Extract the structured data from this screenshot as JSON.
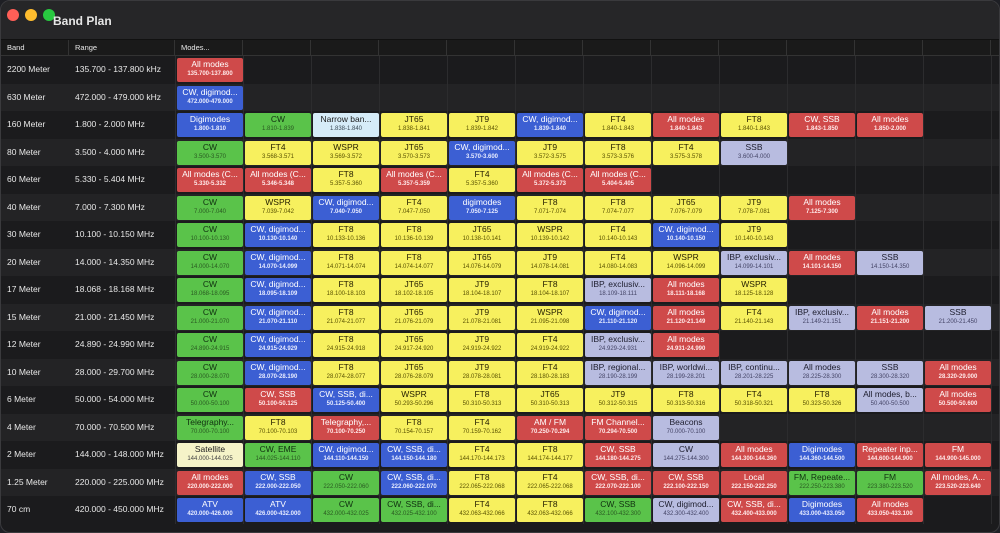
{
  "window": {
    "title": "Band Plan"
  },
  "columns": {
    "band": "Band",
    "range": "Range",
    "modes": "Modes..."
  },
  "colors": {
    "green": "#5ac34a",
    "yellow": "#f7f05e",
    "blue": "#3c5fd3",
    "red": "#cf4a4a",
    "lavender": "#b8bce0",
    "pale": "#f5f3c8",
    "lightblue": "#d6ecf8"
  },
  "rows": [
    {
      "band": "2200 Meter",
      "range": "135.700 - 137.800 kHz",
      "modes": [
        {
          "name": "All modes",
          "freq": "135.700-137.800",
          "color": "red"
        }
      ]
    },
    {
      "band": "630 Meter",
      "range": "472.000 - 479.000 kHz",
      "modes": [
        {
          "name": "CW, digimod...",
          "freq": "472.000-479.000",
          "color": "blue"
        }
      ]
    },
    {
      "band": "160 Meter",
      "range": "1.800 - 2.000 MHz",
      "modes": [
        {
          "name": "Digimodes",
          "freq": "1.800-1.810",
          "color": "blue"
        },
        {
          "name": "CW",
          "freq": "1.810-1.839",
          "color": "green"
        },
        {
          "name": "Narrow ban...",
          "freq": "1.838-1.840",
          "color": "lightblue"
        },
        {
          "name": "JT65",
          "freq": "1.838-1.841",
          "color": "yellow"
        },
        {
          "name": "JT9",
          "freq": "1.839-1.842",
          "color": "yellow"
        },
        {
          "name": "CW, digimod...",
          "freq": "1.839-1.840",
          "color": "blue"
        },
        {
          "name": "FT4",
          "freq": "1.840-1.843",
          "color": "yellow"
        },
        {
          "name": "All modes",
          "freq": "1.840-1.843",
          "color": "red"
        },
        {
          "name": "FT8",
          "freq": "1.840-1.843",
          "color": "yellow"
        },
        {
          "name": "CW, SSB",
          "freq": "1.843-1.850",
          "color": "red"
        },
        {
          "name": "All modes",
          "freq": "1.850-2.000",
          "color": "red"
        }
      ]
    },
    {
      "band": "80 Meter",
      "range": "3.500 - 4.000 MHz",
      "modes": [
        {
          "name": "CW",
          "freq": "3.500-3.570",
          "color": "green"
        },
        {
          "name": "FT4",
          "freq": "3.568-3.571",
          "color": "yellow"
        },
        {
          "name": "WSPR",
          "freq": "3.569-3.572",
          "color": "yellow"
        },
        {
          "name": "JT65",
          "freq": "3.570-3.573",
          "color": "yellow"
        },
        {
          "name": "CW, digimod...",
          "freq": "3.570-3.600",
          "color": "blue"
        },
        {
          "name": "JT9",
          "freq": "3.572-3.575",
          "color": "yellow"
        },
        {
          "name": "FT8",
          "freq": "3.573-3.576",
          "color": "yellow"
        },
        {
          "name": "FT4",
          "freq": "3.575-3.578",
          "color": "yellow"
        },
        {
          "name": "SSB",
          "freq": "3.600-4.000",
          "color": "lavender"
        }
      ]
    },
    {
      "band": "60 Meter",
      "range": "5.330 - 5.404 MHz",
      "modes": [
        {
          "name": "All modes (C...",
          "freq": "5.330-5.332",
          "color": "red"
        },
        {
          "name": "All modes (C...",
          "freq": "5.346-5.348",
          "color": "red"
        },
        {
          "name": "FT8",
          "freq": "5.357-5.360",
          "color": "yellow"
        },
        {
          "name": "All modes (C...",
          "freq": "5.357-5.359",
          "color": "red"
        },
        {
          "name": "FT4",
          "freq": "5.357-5.360",
          "color": "yellow"
        },
        {
          "name": "All modes (C...",
          "freq": "5.372-5.373",
          "color": "red"
        },
        {
          "name": "All modes (C...",
          "freq": "5.404-5.405",
          "color": "red"
        }
      ]
    },
    {
      "band": "40 Meter",
      "range": "7.000 - 7.300 MHz",
      "modes": [
        {
          "name": "CW",
          "freq": "7.000-7.040",
          "color": "green"
        },
        {
          "name": "WSPR",
          "freq": "7.039-7.042",
          "color": "yellow"
        },
        {
          "name": "CW, digimod...",
          "freq": "7.040-7.050",
          "color": "blue"
        },
        {
          "name": "FT4",
          "freq": "7.047-7.050",
          "color": "yellow"
        },
        {
          "name": "digimodes",
          "freq": "7.050-7.125",
          "color": "blue"
        },
        {
          "name": "FT8",
          "freq": "7.071-7.074",
          "color": "yellow"
        },
        {
          "name": "FT8",
          "freq": "7.074-7.077",
          "color": "yellow"
        },
        {
          "name": "JT65",
          "freq": "7.076-7.079",
          "color": "yellow"
        },
        {
          "name": "JT9",
          "freq": "7.078-7.081",
          "color": "yellow"
        },
        {
          "name": "All modes",
          "freq": "7.125-7.300",
          "color": "red"
        }
      ]
    },
    {
      "band": "30 Meter",
      "range": "10.100 - 10.150 MHz",
      "modes": [
        {
          "name": "CW",
          "freq": "10.100-10.130",
          "color": "green"
        },
        {
          "name": "CW, digimod...",
          "freq": "10.130-10.140",
          "color": "blue"
        },
        {
          "name": "FT8",
          "freq": "10.133-10.136",
          "color": "yellow"
        },
        {
          "name": "FT8",
          "freq": "10.136-10.139",
          "color": "yellow"
        },
        {
          "name": "JT65",
          "freq": "10.138-10.141",
          "color": "yellow"
        },
        {
          "name": "WSPR",
          "freq": "10.139-10.142",
          "color": "yellow"
        },
        {
          "name": "FT4",
          "freq": "10.140-10.143",
          "color": "yellow"
        },
        {
          "name": "CW, digimod...",
          "freq": "10.140-10.150",
          "color": "blue"
        },
        {
          "name": "JT9",
          "freq": "10.140-10.143",
          "color": "yellow"
        }
      ]
    },
    {
      "band": "20 Meter",
      "range": "14.000 - 14.350 MHz",
      "modes": [
        {
          "name": "CW",
          "freq": "14.000-14.070",
          "color": "green"
        },
        {
          "name": "CW, digimod...",
          "freq": "14.070-14.099",
          "color": "blue"
        },
        {
          "name": "FT8",
          "freq": "14.071-14.074",
          "color": "yellow"
        },
        {
          "name": "FT8",
          "freq": "14.074-14.077",
          "color": "yellow"
        },
        {
          "name": "JT65",
          "freq": "14.076-14.079",
          "color": "yellow"
        },
        {
          "name": "JT9",
          "freq": "14.078-14.081",
          "color": "yellow"
        },
        {
          "name": "FT4",
          "freq": "14.080-14.083",
          "color": "yellow"
        },
        {
          "name": "WSPR",
          "freq": "14.096-14.099",
          "color": "yellow"
        },
        {
          "name": "IBP, exclusiv...",
          "freq": "14.099-14.101",
          "color": "lavender"
        },
        {
          "name": "All modes",
          "freq": "14.101-14.150",
          "color": "red"
        },
        {
          "name": "SSB",
          "freq": "14.150-14.350",
          "color": "lavender"
        }
      ]
    },
    {
      "band": "17 Meter",
      "range": "18.068 - 18.168 MHz",
      "modes": [
        {
          "name": "CW",
          "freq": "18.068-18.095",
          "color": "green"
        },
        {
          "name": "CW, digimod...",
          "freq": "18.095-18.109",
          "color": "blue"
        },
        {
          "name": "FT8",
          "freq": "18.100-18.103",
          "color": "yellow"
        },
        {
          "name": "JT65",
          "freq": "18.102-18.105",
          "color": "yellow"
        },
        {
          "name": "JT9",
          "freq": "18.104-18.107",
          "color": "yellow"
        },
        {
          "name": "FT8",
          "freq": "18.104-18.107",
          "color": "yellow"
        },
        {
          "name": "IBP, exclusiv...",
          "freq": "18.109-18.111",
          "color": "lavender"
        },
        {
          "name": "All modes",
          "freq": "18.111-18.168",
          "color": "red"
        },
        {
          "name": "WSPR",
          "freq": "18.125-18.128",
          "color": "yellow"
        }
      ]
    },
    {
      "band": "15 Meter",
      "range": "21.000 - 21.450 MHz",
      "modes": [
        {
          "name": "CW",
          "freq": "21.000-21.070",
          "color": "green"
        },
        {
          "name": "CW, digimod...",
          "freq": "21.070-21.110",
          "color": "blue"
        },
        {
          "name": "FT8",
          "freq": "21.074-21.077",
          "color": "yellow"
        },
        {
          "name": "JT65",
          "freq": "21.076-21.079",
          "color": "yellow"
        },
        {
          "name": "JT9",
          "freq": "21.078-21.081",
          "color": "yellow"
        },
        {
          "name": "WSPR",
          "freq": "21.095-21.098",
          "color": "yellow"
        },
        {
          "name": "CW, digimod...",
          "freq": "21.110-21.120",
          "color": "blue"
        },
        {
          "name": "All modes",
          "freq": "21.120-21.149",
          "color": "red"
        },
        {
          "name": "FT4",
          "freq": "21.140-21.143",
          "color": "yellow"
        },
        {
          "name": "IBP, exclusiv...",
          "freq": "21.149-21.151",
          "color": "lavender"
        },
        {
          "name": "All modes",
          "freq": "21.151-21.200",
          "color": "red"
        },
        {
          "name": "SSB",
          "freq": "21.200-21.450",
          "color": "lavender"
        }
      ]
    },
    {
      "band": "12 Meter",
      "range": "24.890 - 24.990 MHz",
      "modes": [
        {
          "name": "CW",
          "freq": "24.890-24.915",
          "color": "green"
        },
        {
          "name": "CW, digimod...",
          "freq": "24.915-24.929",
          "color": "blue"
        },
        {
          "name": "FT8",
          "freq": "24.915-24.918",
          "color": "yellow"
        },
        {
          "name": "JT65",
          "freq": "24.917-24.920",
          "color": "yellow"
        },
        {
          "name": "JT9",
          "freq": "24.919-24.922",
          "color": "yellow"
        },
        {
          "name": "FT4",
          "freq": "24.919-24.922",
          "color": "yellow"
        },
        {
          "name": "IBP, exclusiv...",
          "freq": "24.929-24.931",
          "color": "lavender"
        },
        {
          "name": "All modes",
          "freq": "24.931-24.990",
          "color": "red"
        }
      ]
    },
    {
      "band": "10 Meter",
      "range": "28.000 - 29.700 MHz",
      "modes": [
        {
          "name": "CW",
          "freq": "28.000-28.070",
          "color": "green"
        },
        {
          "name": "CW, digimod...",
          "freq": "28.070-28.190",
          "color": "blue"
        },
        {
          "name": "FT8",
          "freq": "28.074-28.077",
          "color": "yellow"
        },
        {
          "name": "JT65",
          "freq": "28.076-28.079",
          "color": "yellow"
        },
        {
          "name": "JT9",
          "freq": "28.078-28.081",
          "color": "yellow"
        },
        {
          "name": "FT4",
          "freq": "28.180-28.183",
          "color": "yellow"
        },
        {
          "name": "IBP, regional...",
          "freq": "28.190-28.199",
          "color": "lavender"
        },
        {
          "name": "IBP, worldwi...",
          "freq": "28.199-28.201",
          "color": "lavender"
        },
        {
          "name": "IBP, continu...",
          "freq": "28.201-28.225",
          "color": "lavender"
        },
        {
          "name": "All modes",
          "freq": "28.225-28.300",
          "color": "lavender"
        },
        {
          "name": "SSB",
          "freq": "28.300-28.320",
          "color": "lavender"
        },
        {
          "name": "All modes",
          "freq": "28.320-29.000",
          "color": "red"
        }
      ]
    },
    {
      "band": "6 Meter",
      "range": "50.000 - 54.000 MHz",
      "modes": [
        {
          "name": "CW",
          "freq": "50.000-50.100",
          "color": "green"
        },
        {
          "name": "CW, SSB",
          "freq": "50.100-50.125",
          "color": "red"
        },
        {
          "name": "CW, SSB, di...",
          "freq": "50.125-50.400",
          "color": "blue"
        },
        {
          "name": "WSPR",
          "freq": "50.293-50.296",
          "color": "yellow"
        },
        {
          "name": "FT8",
          "freq": "50.310-50.313",
          "color": "yellow"
        },
        {
          "name": "JT65",
          "freq": "50.310-50.313",
          "color": "yellow"
        },
        {
          "name": "JT9",
          "freq": "50.312-50.315",
          "color": "yellow"
        },
        {
          "name": "FT8",
          "freq": "50.313-50.316",
          "color": "yellow"
        },
        {
          "name": "FT4",
          "freq": "50.318-50.321",
          "color": "yellow"
        },
        {
          "name": "FT8",
          "freq": "50.323-50.326",
          "color": "yellow"
        },
        {
          "name": "All modes, b...",
          "freq": "50.400-50.500",
          "color": "lavender"
        },
        {
          "name": "All modes",
          "freq": "50.500-50.600",
          "color": "red"
        }
      ]
    },
    {
      "band": "4 Meter",
      "range": "70.000 - 70.500 MHz",
      "modes": [
        {
          "name": "Telegraphy...",
          "freq": "70.000-70.100",
          "color": "green"
        },
        {
          "name": "FT8",
          "freq": "70.100-70.103",
          "color": "yellow"
        },
        {
          "name": "Telegraphy,...",
          "freq": "70.100-70.250",
          "color": "red"
        },
        {
          "name": "FT8",
          "freq": "70.154-70.157",
          "color": "yellow"
        },
        {
          "name": "FT4",
          "freq": "70.159-70.162",
          "color": "yellow"
        },
        {
          "name": "AM / FM",
          "freq": "70.250-70.294",
          "color": "red"
        },
        {
          "name": "FM Channel...",
          "freq": "70.294-70.500",
          "color": "red"
        },
        {
          "name": "Beacons",
          "freq": "70.000-70.100",
          "color": "lavender"
        }
      ]
    },
    {
      "band": "2 Meter",
      "range": "144.000 - 148.000 MHz",
      "modes": [
        {
          "name": "Satellite",
          "freq": "144.000-144.025",
          "color": "pale"
        },
        {
          "name": "CW, EME",
          "freq": "144.025-144.110",
          "color": "green"
        },
        {
          "name": "CW, digimod...",
          "freq": "144.110-144.150",
          "color": "blue"
        },
        {
          "name": "CW, SSB, di...",
          "freq": "144.150-144.180",
          "color": "blue"
        },
        {
          "name": "FT4",
          "freq": "144.170-144.173",
          "color": "yellow"
        },
        {
          "name": "FT8",
          "freq": "144.174-144.177",
          "color": "yellow"
        },
        {
          "name": "CW, SSB",
          "freq": "144.180-144.275",
          "color": "red"
        },
        {
          "name": "CW",
          "freq": "144.275-144.300",
          "color": "lavender"
        },
        {
          "name": "All modes",
          "freq": "144.300-144.360",
          "color": "red"
        },
        {
          "name": "Digimodes",
          "freq": "144.360-144.500",
          "color": "blue"
        },
        {
          "name": "Repeater inp...",
          "freq": "144.600-144.900",
          "color": "red"
        },
        {
          "name": "FM",
          "freq": "144.900-145.000",
          "color": "red"
        }
      ]
    },
    {
      "band": "1.25 Meter",
      "range": "220.000 - 225.000 MHz",
      "modes": [
        {
          "name": "All modes",
          "freq": "220.000-222.000",
          "color": "red"
        },
        {
          "name": "CW, SSB",
          "freq": "222.000-222.050",
          "color": "blue"
        },
        {
          "name": "CW",
          "freq": "222.050-222.060",
          "color": "green"
        },
        {
          "name": "CW, SSB, di...",
          "freq": "222.060-222.070",
          "color": "blue"
        },
        {
          "name": "FT8",
          "freq": "222.065-222.068",
          "color": "yellow"
        },
        {
          "name": "FT4",
          "freq": "222.065-222.068",
          "color": "yellow"
        },
        {
          "name": "CW, SSB, di...",
          "freq": "222.070-222.100",
          "color": "red"
        },
        {
          "name": "CW, SSB",
          "freq": "222.100-222.150",
          "color": "red"
        },
        {
          "name": "Local",
          "freq": "222.150-222.250",
          "color": "red"
        },
        {
          "name": "FM, Repeate...",
          "freq": "222.250-223.380",
          "color": "green"
        },
        {
          "name": "FM",
          "freq": "223.380-223.520",
          "color": "green"
        },
        {
          "name": "All modes, A...",
          "freq": "223.520-223.640",
          "color": "red"
        }
      ]
    },
    {
      "band": "70 cm",
      "range": "420.000 - 450.000 MHz",
      "modes": [
        {
          "name": "ATV",
          "freq": "420.000-426.000",
          "color": "blue"
        },
        {
          "name": "ATV",
          "freq": "426.000-432.000",
          "color": "blue"
        },
        {
          "name": "CW",
          "freq": "432.000-432.025",
          "color": "green"
        },
        {
          "name": "CW, SSB, di...",
          "freq": "432.025-432.100",
          "color": "green"
        },
        {
          "name": "FT4",
          "freq": "432.063-432.066",
          "color": "yellow"
        },
        {
          "name": "FT8",
          "freq": "432.063-432.066",
          "color": "yellow"
        },
        {
          "name": "CW, SSB",
          "freq": "432.100-432.300",
          "color": "green"
        },
        {
          "name": "CW, digimod...",
          "freq": "432.300-432.400",
          "color": "lavender"
        },
        {
          "name": "CW, SSB, di...",
          "freq": "432.400-433.000",
          "color": "red"
        },
        {
          "name": "Digimodes",
          "freq": "433.000-433.050",
          "color": "blue"
        },
        {
          "name": "All modes",
          "freq": "433.050-433.100",
          "color": "red"
        }
      ]
    }
  ]
}
